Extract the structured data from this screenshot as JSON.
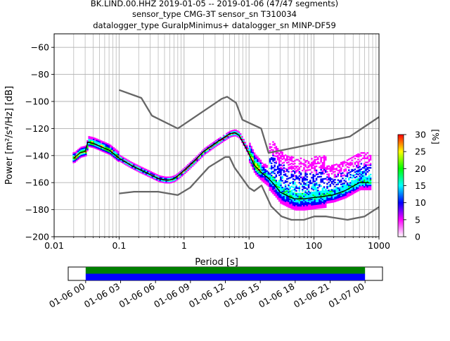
{
  "figure": {
    "title_lines": [
      "BK.LIND.00.HHZ   2019-01-05 -- 2019-01-06  (47/47 segments)",
      "sensor_type CMG-3T sensor_sn T310034",
      "datalogger_type GuralpMinimus+ datalogger_sn MINP-DF59"
    ]
  },
  "chart_data": [
    {
      "type": "heatmap",
      "xlabel": "Period [s]",
      "ylabel": "Power [m²/s⁴/Hz] [dB]",
      "xscale": "log",
      "xlim": [
        0.01,
        1000
      ],
      "ylim": [
        -200,
        -50
      ],
      "x_ticks": [
        0.01,
        0.1,
        1,
        10,
        100,
        1000
      ],
      "x_tick_labels": [
        "0.01",
        "0.1",
        "1",
        "10",
        "100",
        "1000"
      ],
      "y_ticks": [
        -200,
        -180,
        -160,
        -140,
        -120,
        -100,
        -80,
        -60
      ],
      "y_tick_labels": [
        "−200",
        "−180",
        "−160",
        "−140",
        "−120",
        "−100",
        "−80",
        "−60"
      ],
      "grid": true,
      "series": [
        {
          "role": "mode",
          "color": "#000000",
          "x": [
            0.02,
            0.025,
            0.03,
            0.033,
            0.04,
            0.05,
            0.07,
            0.1,
            0.15,
            0.2,
            0.3,
            0.4,
            0.5,
            0.6,
            0.7,
            0.8,
            1,
            1.5,
            2,
            3,
            4,
            5,
            6,
            7,
            8,
            10,
            12,
            15,
            20,
            25,
            30,
            40,
            50,
            70,
            100,
            150,
            200,
            300,
            500,
            700
          ],
          "y": [
            -142,
            -138,
            -137,
            -130,
            -131,
            -133,
            -136,
            -142,
            -147,
            -150,
            -154,
            -157,
            -158,
            -158,
            -157,
            -155,
            -151,
            -143,
            -137,
            -131,
            -127,
            -124,
            -123,
            -125,
            -130,
            -139,
            -147,
            -152,
            -157,
            -162,
            -167,
            -170,
            -172,
            -172,
            -171,
            -170,
            -169,
            -166,
            -160,
            -160
          ]
        },
        {
          "role": "high_noise_model",
          "color": "#666666",
          "x": [
            0.1,
            0.22,
            0.32,
            0.8,
            3.8,
            4.6,
            6.3,
            7.9,
            15.4,
            20,
            354.8,
            1000
          ],
          "y": [
            -91.5,
            -97.4,
            -110.5,
            -120,
            -98,
            -96.5,
            -101,
            -113.5,
            -120,
            -138,
            -126,
            -111.5
          ]
        },
        {
          "role": "low_noise_model",
          "color": "#666666",
          "x": [
            0.1,
            0.17,
            0.4,
            0.8,
            1.24,
            2.4,
            4.3,
            5,
            6,
            10,
            12,
            15.6,
            21.9,
            31.6,
            45,
            70,
            101,
            154,
            328,
            600,
            1000
          ],
          "y": [
            -168,
            -166.7,
            -166.7,
            -169.2,
            -163.7,
            -148.6,
            -141.1,
            -141.1,
            -149,
            -163.8,
            -166.2,
            -162.1,
            -177.5,
            -185,
            -187.5,
            -187.5,
            -185,
            -185,
            -187.5,
            -185,
            -178
          ]
        }
      ],
      "colorbar": {
        "label": "[%]",
        "range": [
          0,
          30
        ],
        "ticks": [
          0,
          5,
          10,
          15,
          20,
          25,
          30
        ],
        "tick_labels": [
          "0",
          "5",
          "10",
          "15",
          "20",
          "25",
          "30"
        ],
        "colors": [
          "#ffffff",
          "#ff00ff",
          "#0000ff",
          "#00ffff",
          "#00ff00",
          "#ffff00",
          "#ff0000"
        ]
      }
    },
    {
      "type": "bar",
      "orientation": "horizontal",
      "xlim": [
        "2019-01-05 22:30",
        "2019-01-07 01:30"
      ],
      "x_ticks": [
        "2019-01-06 00:00",
        "2019-01-06 03:00",
        "2019-01-06 06:00",
        "2019-01-06 09:00",
        "2019-01-06 12:00",
        "2019-01-06 15:00",
        "2019-01-06 18:00",
        "2019-01-06 21:00",
        "2019-01-07 00:00"
      ],
      "x_tick_labels": [
        "01-06 00",
        "01-06 03",
        "01-06 06",
        "01-06 09",
        "01-06 12",
        "01-06 15",
        "01-06 18",
        "01-06 21",
        "01-07 00"
      ],
      "bars": [
        {
          "start": "2019-01-06 00:00",
          "end": "2019-01-07 00:00",
          "color": "#008000"
        },
        {
          "start": "2019-01-06 00:00",
          "end": "2019-01-07 00:00",
          "color": "#0000ff"
        }
      ]
    }
  ]
}
